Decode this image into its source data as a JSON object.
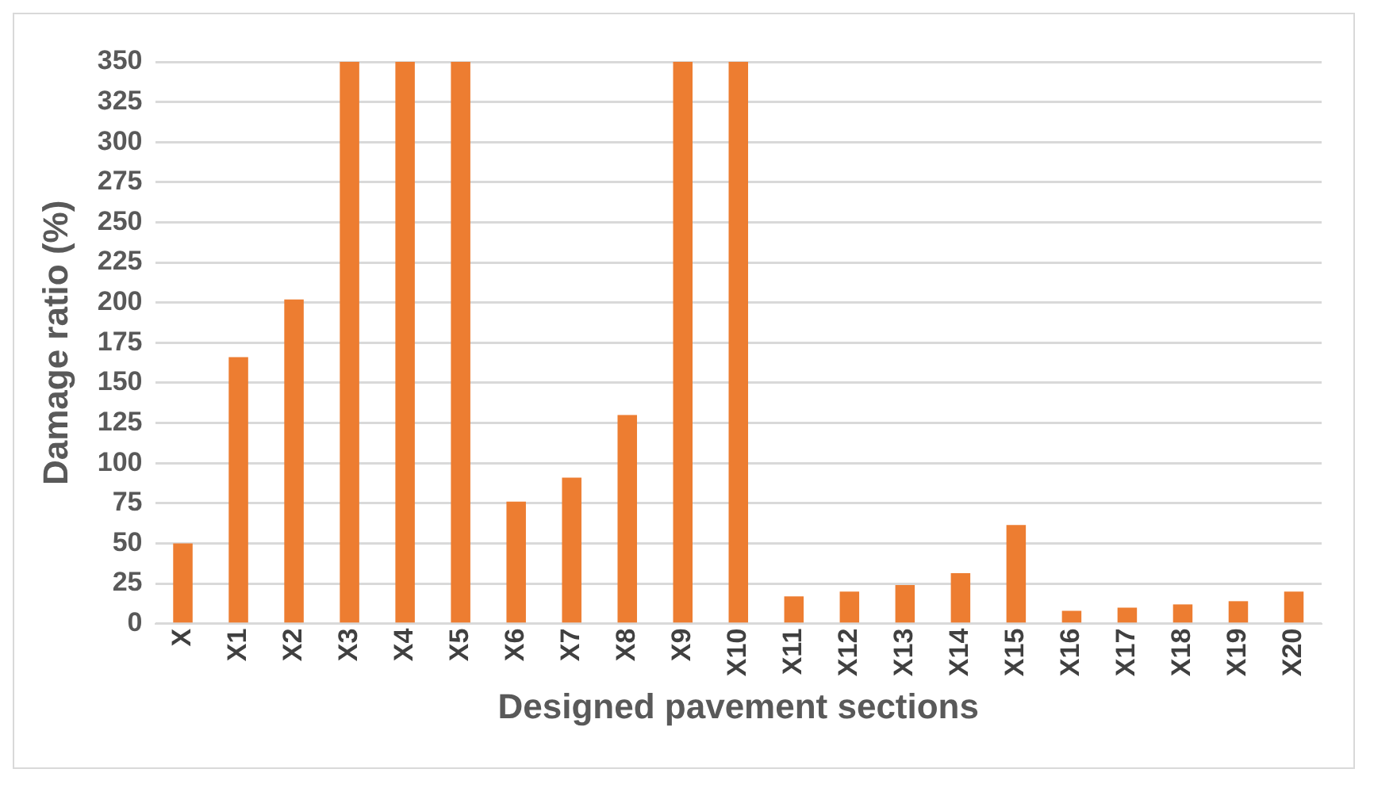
{
  "chart_data": {
    "type": "bar",
    "xlabel": "Designed pavement sections",
    "ylabel": "Damage ratio (%)",
    "categories": [
      "X",
      "X1",
      "X2",
      "X3",
      "X4",
      "X5",
      "X6",
      "X7",
      "X8",
      "X9",
      "X10",
      "X11",
      "X12",
      "X13",
      "X14",
      "X15",
      "X16",
      "X17",
      "X18",
      "X19",
      "X20"
    ],
    "values": [
      50,
      166,
      202,
      350,
      350,
      350,
      76,
      91,
      130,
      350,
      350,
      17,
      20,
      24,
      31.5,
      61.5,
      8,
      10,
      12,
      14,
      20
    ],
    "color": "#ed7d31",
    "ylim": [
      0,
      350
    ],
    "yticks": [
      0,
      25,
      50,
      75,
      100,
      125,
      150,
      175,
      200,
      225,
      250,
      275,
      300,
      325,
      350
    ],
    "grid": "y",
    "legend": false
  }
}
